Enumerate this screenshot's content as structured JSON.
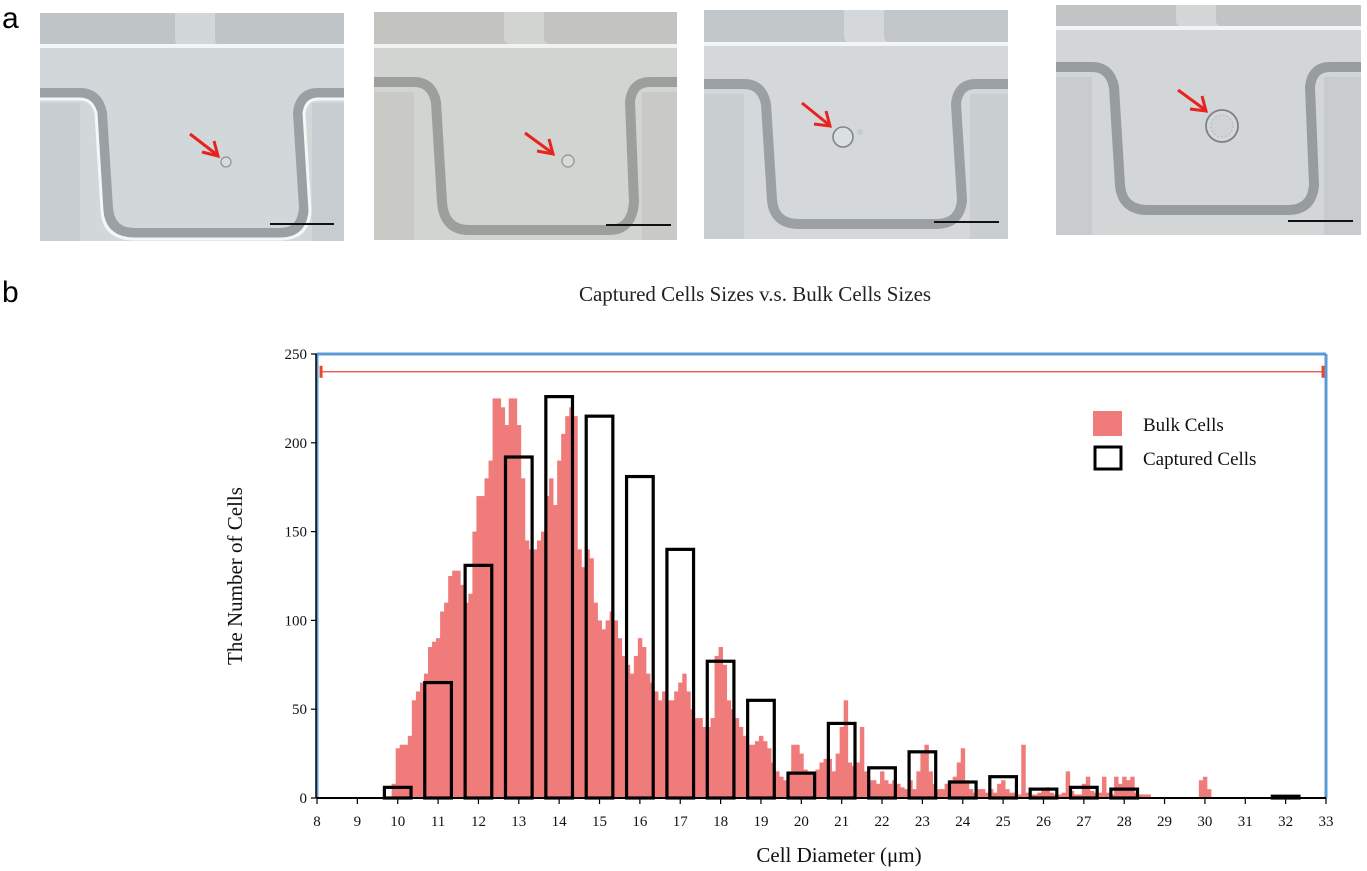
{
  "panel_labels": {
    "a": "a",
    "b": "b"
  },
  "micrographs": [
    {
      "id": "cell-1",
      "cell_radius_um": "small"
    },
    {
      "id": "cell-2",
      "cell_radius_um": "small"
    },
    {
      "id": "cell-3",
      "cell_radius_um": "medium"
    },
    {
      "id": "cell-4",
      "cell_radius_um": "large"
    }
  ],
  "colors": {
    "bulk_fill": "#f07b7b",
    "captured_stroke": "#000000",
    "frame_blue": "#5b9bd5",
    "range_red": "#e8472f",
    "arrow_red": "#e8231f"
  },
  "chart_data": {
    "type": "bar",
    "title": "Captured Cells Sizes v.s. Bulk Cells Sizes",
    "xlabel": "Cell Diameter (μm)",
    "ylabel": "The Number of Cells",
    "xlim": [
      8,
      33
    ],
    "ylim": [
      0,
      250
    ],
    "xticks": [
      "8",
      "9",
      "10",
      "11",
      "12",
      "13",
      "14",
      "15",
      "16",
      "17",
      "18",
      "19",
      "20",
      "21",
      "22",
      "23",
      "24",
      "25",
      "26",
      "27",
      "28",
      "29",
      "30",
      "31",
      "32",
      "33"
    ],
    "yticks": [
      "0",
      "50",
      "100",
      "150",
      "200",
      "250"
    ],
    "legend": {
      "placement": "top-right",
      "entries": [
        "Bulk Cells",
        "Captured Cells"
      ]
    },
    "range_line": {
      "x_start": 8.1,
      "x_end": 33,
      "y": 240
    },
    "series": [
      {
        "name": "Bulk Cells",
        "style": "filled",
        "points": [
          [
            9.9,
            8
          ],
          [
            10.0,
            28
          ],
          [
            10.1,
            30
          ],
          [
            10.2,
            30
          ],
          [
            10.3,
            35
          ],
          [
            10.4,
            55
          ],
          [
            10.5,
            60
          ],
          [
            10.6,
            65
          ],
          [
            10.7,
            70
          ],
          [
            10.8,
            85
          ],
          [
            10.9,
            88
          ],
          [
            11.0,
            90
          ],
          [
            11.1,
            105
          ],
          [
            11.2,
            110
          ],
          [
            11.3,
            125
          ],
          [
            11.4,
            128
          ],
          [
            11.5,
            128
          ],
          [
            11.6,
            120
          ],
          [
            11.7,
            110
          ],
          [
            11.8,
            115
          ],
          [
            11.9,
            150
          ],
          [
            12.0,
            170
          ],
          [
            12.1,
            170
          ],
          [
            12.2,
            180
          ],
          [
            12.3,
            190
          ],
          [
            12.4,
            225
          ],
          [
            12.5,
            225
          ],
          [
            12.6,
            220
          ],
          [
            12.7,
            210
          ],
          [
            12.8,
            225
          ],
          [
            12.9,
            225
          ],
          [
            13.0,
            210
          ],
          [
            13.1,
            180
          ],
          [
            13.2,
            145
          ],
          [
            13.3,
            140
          ],
          [
            13.4,
            140
          ],
          [
            13.5,
            145
          ],
          [
            13.6,
            150
          ],
          [
            13.7,
            170
          ],
          [
            13.8,
            180
          ],
          [
            13.9,
            165
          ],
          [
            14.0,
            190
          ],
          [
            14.1,
            205
          ],
          [
            14.2,
            215
          ],
          [
            14.3,
            220
          ],
          [
            14.4,
            215
          ],
          [
            14.5,
            140
          ],
          [
            14.6,
            130
          ],
          [
            14.7,
            140
          ],
          [
            14.8,
            135
          ],
          [
            14.9,
            110
          ],
          [
            15.0,
            100
          ],
          [
            15.1,
            95
          ],
          [
            15.2,
            100
          ],
          [
            15.3,
            105
          ],
          [
            15.4,
            100
          ],
          [
            15.5,
            90
          ],
          [
            15.6,
            80
          ],
          [
            15.7,
            75
          ],
          [
            15.8,
            70
          ],
          [
            15.9,
            80
          ],
          [
            16.0,
            90
          ],
          [
            16.1,
            85
          ],
          [
            16.2,
            70
          ],
          [
            16.3,
            65
          ],
          [
            16.4,
            60
          ],
          [
            16.5,
            55
          ],
          [
            16.6,
            60
          ],
          [
            16.7,
            55
          ],
          [
            16.8,
            55
          ],
          [
            16.9,
            60
          ],
          [
            17.0,
            65
          ],
          [
            17.1,
            70
          ],
          [
            17.2,
            60
          ],
          [
            17.3,
            50
          ],
          [
            17.4,
            45
          ],
          [
            17.5,
            45
          ],
          [
            17.6,
            40
          ],
          [
            17.7,
            40
          ],
          [
            17.8,
            45
          ],
          [
            17.9,
            80
          ],
          [
            18.0,
            85
          ],
          [
            18.1,
            75
          ],
          [
            18.2,
            55
          ],
          [
            18.3,
            50
          ],
          [
            18.4,
            45
          ],
          [
            18.5,
            40
          ],
          [
            18.6,
            35
          ],
          [
            18.7,
            30
          ],
          [
            18.8,
            30
          ],
          [
            18.9,
            32
          ],
          [
            19.0,
            35
          ],
          [
            19.1,
            32
          ],
          [
            19.2,
            28
          ],
          [
            19.3,
            20
          ],
          [
            19.4,
            15
          ],
          [
            19.5,
            12
          ],
          [
            19.6,
            10
          ],
          [
            19.7,
            15
          ],
          [
            19.8,
            30
          ],
          [
            19.9,
            30
          ],
          [
            20.0,
            25
          ],
          [
            20.1,
            16
          ],
          [
            20.2,
            15
          ],
          [
            20.3,
            15
          ],
          [
            20.4,
            16
          ],
          [
            20.5,
            20
          ],
          [
            20.6,
            22
          ],
          [
            20.7,
            22
          ],
          [
            20.8,
            15
          ],
          [
            20.9,
            25
          ],
          [
            21.0,
            40
          ],
          [
            21.1,
            55
          ],
          [
            21.2,
            20
          ],
          [
            21.3,
            18
          ],
          [
            21.4,
            20
          ],
          [
            21.5,
            40
          ],
          [
            21.6,
            15
          ],
          [
            21.7,
            10
          ],
          [
            21.8,
            10
          ],
          [
            21.9,
            8
          ],
          [
            22.0,
            15
          ],
          [
            22.1,
            10
          ],
          [
            22.2,
            8
          ],
          [
            22.3,
            10
          ],
          [
            22.4,
            8
          ],
          [
            22.5,
            6
          ],
          [
            22.6,
            5
          ],
          [
            22.7,
            10
          ],
          [
            22.8,
            5
          ],
          [
            22.9,
            15
          ],
          [
            23.0,
            25
          ],
          [
            23.1,
            30
          ],
          [
            23.2,
            15
          ],
          [
            23.3,
            8
          ],
          [
            23.4,
            5
          ],
          [
            23.5,
            5
          ],
          [
            23.6,
            8
          ],
          [
            23.7,
            10
          ],
          [
            23.8,
            12
          ],
          [
            23.9,
            20
          ],
          [
            24.0,
            28
          ],
          [
            24.1,
            10
          ],
          [
            24.2,
            5
          ],
          [
            24.3,
            3
          ],
          [
            24.4,
            5
          ],
          [
            24.5,
            5
          ],
          [
            24.6,
            3
          ],
          [
            24.7,
            5
          ],
          [
            24.8,
            3
          ],
          [
            24.9,
            8
          ],
          [
            25.0,
            10
          ],
          [
            25.1,
            5
          ],
          [
            25.2,
            3
          ],
          [
            25.3,
            3
          ],
          [
            25.4,
            2
          ],
          [
            25.5,
            30
          ],
          [
            25.6,
            3
          ],
          [
            25.7,
            2
          ],
          [
            25.8,
            2
          ],
          [
            25.9,
            3
          ],
          [
            26.0,
            5
          ],
          [
            26.1,
            6
          ],
          [
            26.2,
            3
          ],
          [
            26.3,
            2
          ],
          [
            26.4,
            2
          ],
          [
            26.5,
            3
          ],
          [
            26.6,
            15
          ],
          [
            26.7,
            4
          ],
          [
            26.8,
            2
          ],
          [
            26.9,
            2
          ],
          [
            27.0,
            8
          ],
          [
            27.1,
            12
          ],
          [
            27.2,
            4
          ],
          [
            27.3,
            3
          ],
          [
            27.4,
            3
          ],
          [
            27.5,
            12
          ],
          [
            27.6,
            3
          ],
          [
            27.7,
            2
          ],
          [
            27.8,
            12
          ],
          [
            27.9,
            8
          ],
          [
            28.0,
            12
          ],
          [
            28.1,
            10
          ],
          [
            28.2,
            12
          ],
          [
            28.3,
            3
          ],
          [
            28.4,
            2
          ],
          [
            28.5,
            2
          ],
          [
            28.6,
            2
          ],
          [
            29.9,
            10
          ],
          [
            30.0,
            12
          ],
          [
            30.1,
            5
          ]
        ]
      },
      {
        "name": "Captured Cells",
        "style": "outline",
        "categories": [
          10,
          11,
          12,
          13,
          14,
          15,
          16,
          17,
          18,
          19,
          20,
          21,
          22,
          23,
          24,
          25,
          26,
          27,
          28,
          32
        ],
        "values": [
          6,
          65,
          131,
          192,
          226,
          215,
          181,
          140,
          77,
          55,
          14,
          42,
          17,
          26,
          9,
          12,
          5,
          6,
          5,
          1
        ]
      }
    ]
  }
}
